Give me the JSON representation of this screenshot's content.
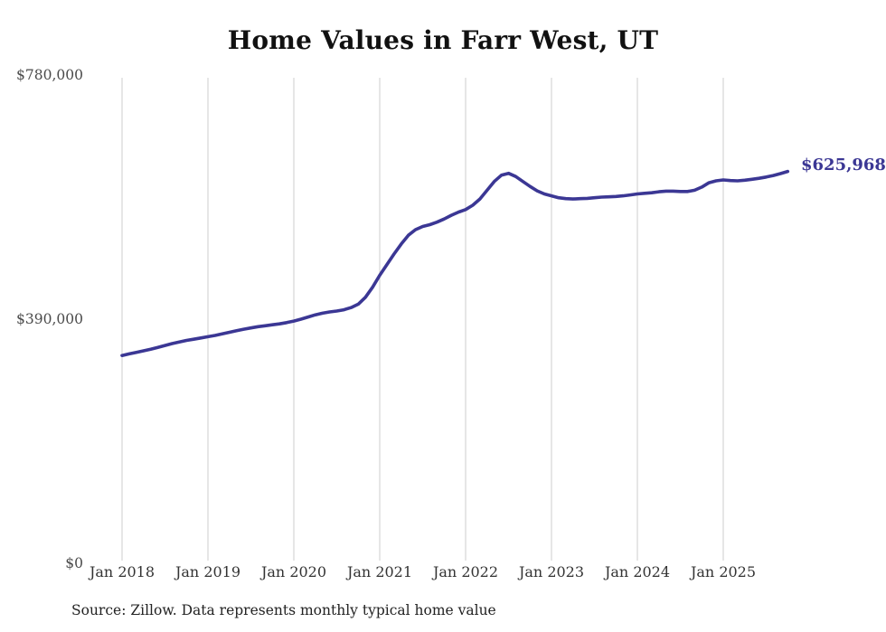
{
  "title": "Home Values in Farr West, UT",
  "end_label": "$625,968",
  "source_note": "Source: Zillow. Data represents monthly typical home value",
  "colors": {
    "line": "#3b3794",
    "grid": "#cccccc",
    "title_text": "#111111",
    "axis_text": "#4a4a4a",
    "end_label_text": "#3b3794",
    "background": "#ffffff"
  },
  "chart_data": {
    "type": "line",
    "title": "Home Values in Farr West, UT",
    "xlabel": "",
    "ylabel": "",
    "ylim": [
      0,
      780000
    ],
    "grid": "vertical-only",
    "legend": "none",
    "x_tick_labels": [
      "Jan 2018",
      "Jan 2019",
      "Jan 2020",
      "Jan 2021",
      "Jan 2022",
      "Jan 2023",
      "Jan 2024",
      "Jan 2025"
    ],
    "y_tick_labels": [
      "$780,000",
      "$390,000",
      "$0"
    ],
    "y_tick_values": [
      780000,
      390000,
      0
    ],
    "x_start": "2018-01",
    "x_interval": "month",
    "end_value": 625968,
    "end_value_label": "$625,968",
    "series": [
      {
        "name": "Monthly typical home value",
        "values": [
          332000,
          334500,
          337000,
          339500,
          342000,
          345000,
          348000,
          351000,
          353500,
          356000,
          358000,
          360000,
          362000,
          364000,
          366500,
          369000,
          371500,
          374000,
          376000,
          378000,
          379500,
          381000,
          382500,
          384500,
          387000,
          390000,
          393500,
          397000,
          399500,
          401500,
          403000,
          405000,
          408500,
          414000,
          425000,
          441000,
          460000,
          477000,
          494000,
          510000,
          524000,
          533000,
          538000,
          541000,
          545000,
          550000,
          556000,
          561000,
          565000,
          572000,
          582000,
          596000,
          610000,
          620000,
          623000,
          618000,
          610000,
          602000,
          595000,
          590000,
          587000,
          584000,
          582500,
          582000,
          582500,
          583000,
          584000,
          585000,
          585500,
          586000,
          587000,
          588500,
          590000,
          591000,
          592000,
          593500,
          594500,
          594500,
          594000,
          594000,
          596000,
          601000,
          608000,
          611000,
          612500,
          611500,
          611000,
          612000,
          613500,
          615000,
          617000,
          619500,
          622500,
          625968
        ]
      }
    ]
  }
}
